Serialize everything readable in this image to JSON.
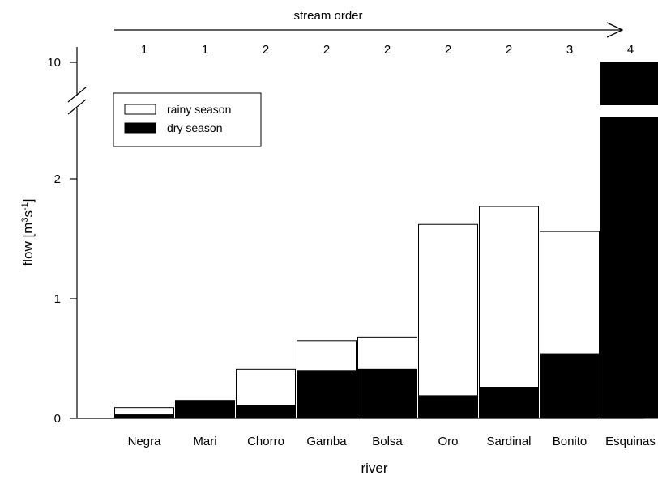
{
  "chart_data": {
    "type": "bar",
    "title": "",
    "xlabel": "river",
    "ylabel": "flow [m3s-1]",
    "ylabel_parts": {
      "base": "flow [m",
      "sup1": "3",
      "mid": "s",
      "sup2": "-1",
      "end": "]"
    },
    "top_axis_label": "stream order",
    "categories": [
      "Negra",
      "Mari",
      "Chorro",
      "Gamba",
      "Bolsa",
      "Oro",
      "Sardinal",
      "Bonito",
      "Esquinas"
    ],
    "stream_order": [
      "1",
      "1",
      "2",
      "2",
      "2",
      "2",
      "2",
      "3",
      "4"
    ],
    "series": [
      {
        "name": "rainy season",
        "values": [
          0.09,
          0.15,
          0.41,
          0.65,
          0.68,
          1.62,
          1.77,
          1.56,
          10.0
        ],
        "color": "#ffffff"
      },
      {
        "name": "dry season",
        "values": [
          0.03,
          0.15,
          0.11,
          0.4,
          0.41,
          0.19,
          0.26,
          0.54,
          10.0
        ],
        "color": "#000000"
      }
    ],
    "ylim": [
      0,
      10
    ],
    "axis_break": [
      2.45,
      9.5
    ],
    "yticks": [
      0,
      1,
      2,
      10
    ],
    "ytick_labels": [
      "0",
      "1",
      "2",
      "10"
    ],
    "legend": {
      "placement": "top-left",
      "entries": [
        "rainy season",
        "dry season"
      ]
    },
    "grid": false
  }
}
